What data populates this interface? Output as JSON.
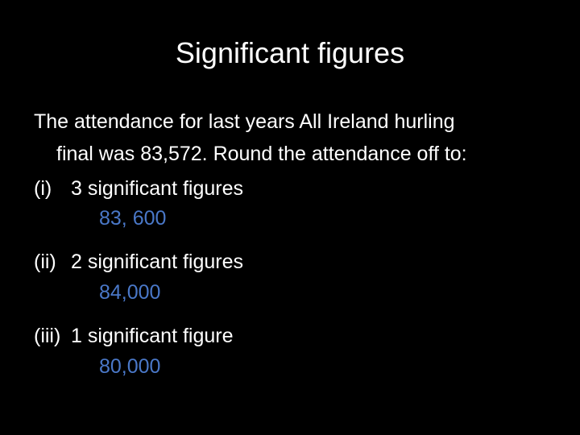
{
  "header": {
    "title": "Significant figures"
  },
  "intro": {
    "lines": [
      "The attendance for last years All Ireland hurling",
      "final was 83,572. Round the attendance off to:"
    ]
  },
  "items": [
    {
      "label": "(i)",
      "text": "3 significant figures",
      "answer": "83, 600"
    },
    {
      "label": "(ii)",
      "text": "2 significant figures",
      "answer": "84,000"
    },
    {
      "label": "(iii)",
      "text": "1 significant figure",
      "answer": "80,000"
    }
  ]
}
